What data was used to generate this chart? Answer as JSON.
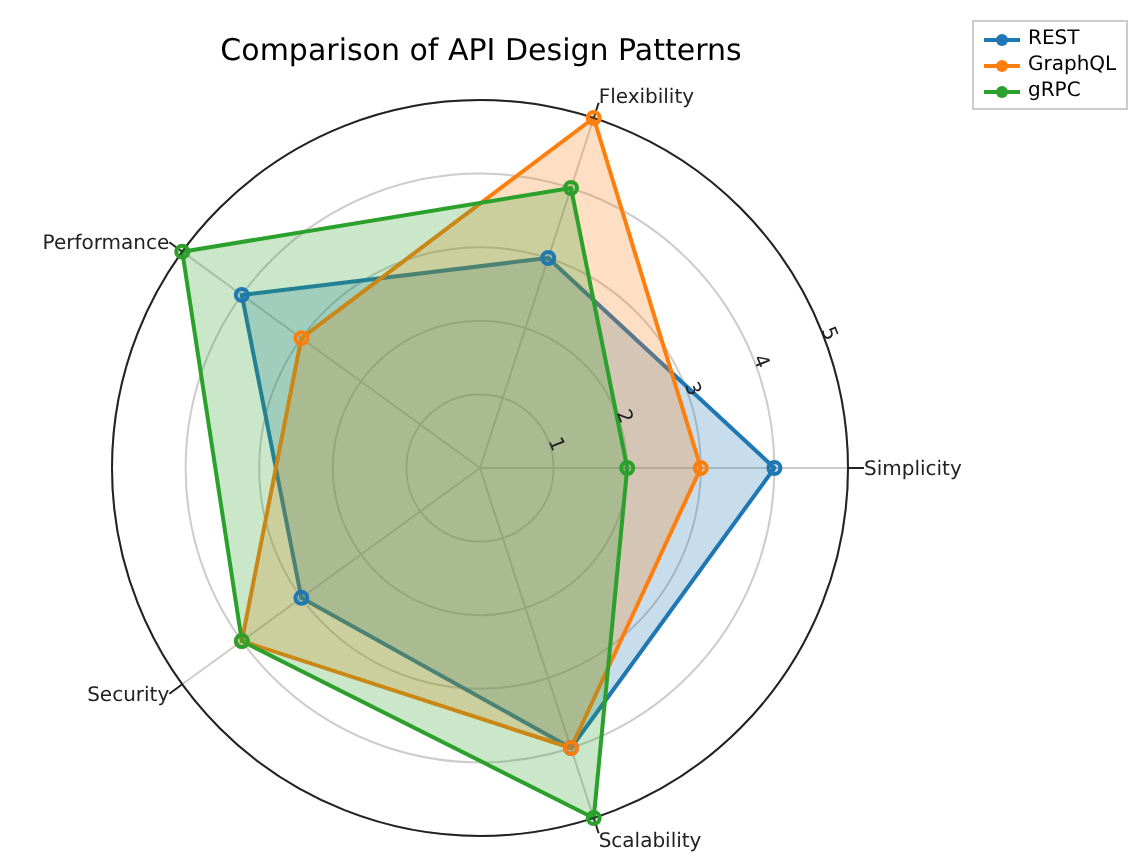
{
  "chart_data": {
    "type": "radar",
    "title": "Comparison of API Design Patterns",
    "categories": [
      "Flexibility",
      "Simplicity",
      "Scalability",
      "Security",
      "Performance"
    ],
    "series": [
      {
        "name": "REST",
        "color": "#1f77b4",
        "values": [
          3,
          4,
          4,
          3,
          4
        ]
      },
      {
        "name": "GraphQL",
        "color": "#ff7f0e",
        "values": [
          5,
          3,
          4,
          4,
          3
        ]
      },
      {
        "name": "gRPC",
        "color": "#2ca02c",
        "values": [
          4,
          2,
          5,
          4,
          5
        ]
      }
    ],
    "ylim": [
      0,
      5
    ],
    "yticks": [
      1,
      2,
      3,
      4,
      5
    ],
    "grid": true,
    "legend": "top right",
    "marker": "circle",
    "line_style": "solid"
  }
}
